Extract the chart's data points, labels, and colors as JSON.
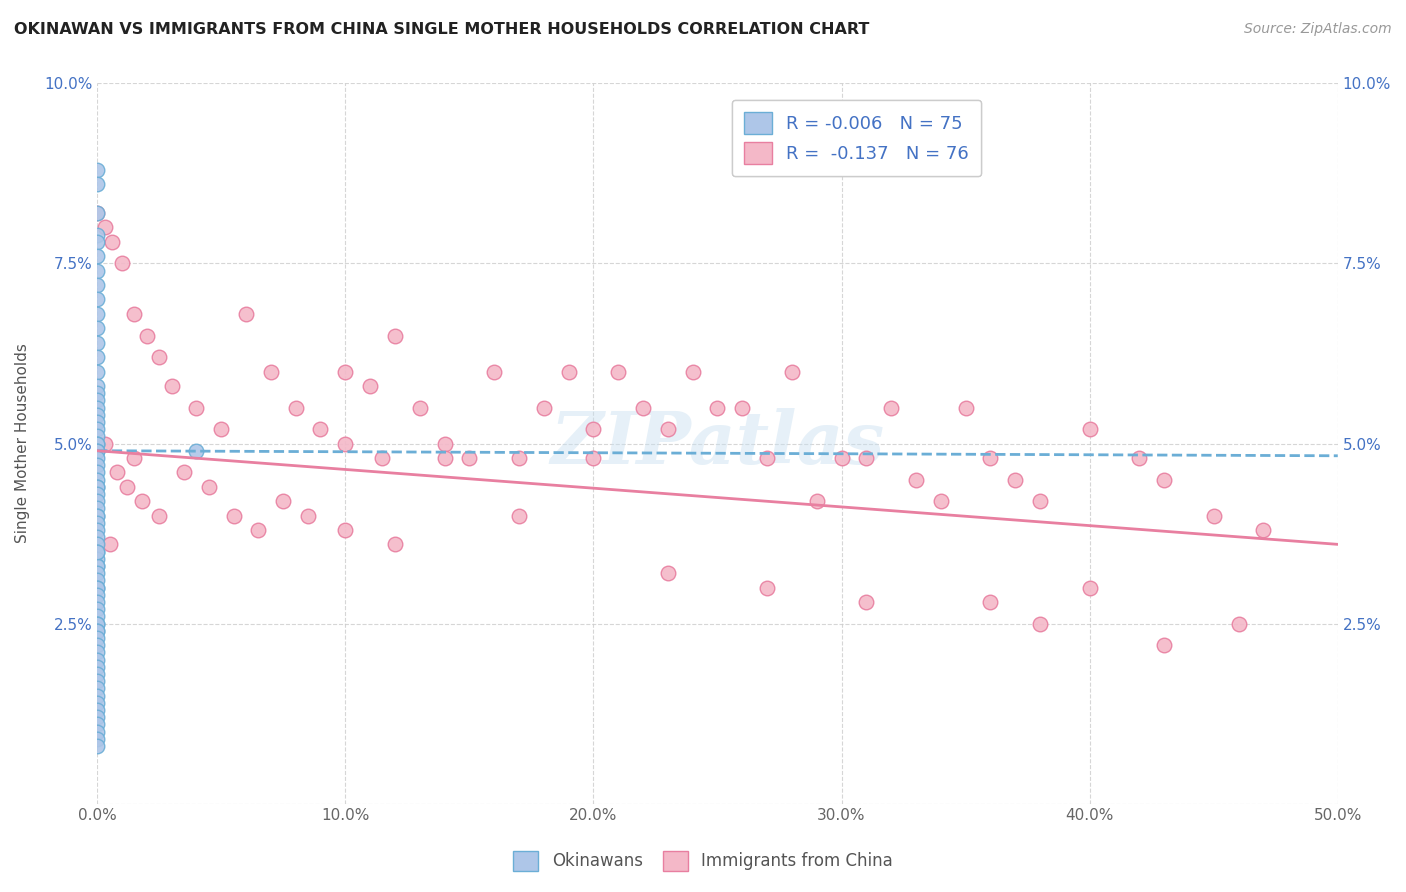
{
  "title": "OKINAWAN VS IMMIGRANTS FROM CHINA SINGLE MOTHER HOUSEHOLDS CORRELATION CHART",
  "source": "Source: ZipAtlas.com",
  "ylabel": "Single Mother Households",
  "xlim": [
    0,
    0.5
  ],
  "ylim": [
    0,
    0.1
  ],
  "okinawan_color": "#aec6e8",
  "okinawan_edge": "#6baed6",
  "china_color": "#f4b8c8",
  "china_edge": "#e87fa0",
  "okinawan_R": -0.006,
  "okinawan_N": 75,
  "china_R": -0.137,
  "china_N": 76,
  "legend_label_1": "Okinawans",
  "legend_label_2": "Immigrants from China",
  "watermark": "ZIPatlas",
  "background_color": "#ffffff",
  "okinawan_line_y_start": 0.049,
  "okinawan_line_y_end": 0.0483,
  "china_line_y_start": 0.049,
  "china_line_y_end": 0.036,
  "okinawan_x": [
    0.0,
    0.0,
    0.0,
    0.0,
    0.0,
    0.0,
    0.0,
    0.0,
    0.0,
    0.0,
    0.0,
    0.0,
    0.0,
    0.0,
    0.0,
    0.0,
    0.0,
    0.0,
    0.0,
    0.0,
    0.0,
    0.0,
    0.0,
    0.0,
    0.0,
    0.0,
    0.0,
    0.0,
    0.0,
    0.0,
    0.0,
    0.0,
    0.0,
    0.0,
    0.0,
    0.0,
    0.0,
    0.0,
    0.0,
    0.0,
    0.0,
    0.0,
    0.0,
    0.0,
    0.0,
    0.0,
    0.0,
    0.0,
    0.0,
    0.0,
    0.0,
    0.0,
    0.0,
    0.0,
    0.0,
    0.0,
    0.0,
    0.0,
    0.0,
    0.0,
    0.0,
    0.0,
    0.0,
    0.0,
    0.0,
    0.0,
    0.0,
    0.0,
    0.0,
    0.04,
    0.0,
    0.0,
    0.0,
    0.0,
    0.0
  ],
  "okinawan_y": [
    0.088,
    0.086,
    0.082,
    0.079,
    0.078,
    0.076,
    0.074,
    0.072,
    0.07,
    0.068,
    0.066,
    0.064,
    0.062,
    0.06,
    0.058,
    0.057,
    0.056,
    0.055,
    0.054,
    0.053,
    0.052,
    0.051,
    0.05,
    0.05,
    0.049,
    0.049,
    0.048,
    0.047,
    0.046,
    0.045,
    0.044,
    0.044,
    0.043,
    0.042,
    0.041,
    0.04,
    0.04,
    0.039,
    0.038,
    0.037,
    0.036,
    0.035,
    0.034,
    0.033,
    0.033,
    0.032,
    0.031,
    0.03,
    0.03,
    0.029,
    0.028,
    0.027,
    0.026,
    0.025,
    0.025,
    0.024,
    0.024,
    0.023,
    0.022,
    0.021,
    0.02,
    0.019,
    0.018,
    0.017,
    0.016,
    0.015,
    0.014,
    0.013,
    0.035,
    0.049,
    0.012,
    0.011,
    0.01,
    0.009,
    0.008
  ],
  "china_x": [
    0.0,
    0.003,
    0.006,
    0.01,
    0.015,
    0.02,
    0.025,
    0.03,
    0.04,
    0.05,
    0.06,
    0.07,
    0.08,
    0.09,
    0.1,
    0.1,
    0.11,
    0.115,
    0.12,
    0.13,
    0.14,
    0.15,
    0.16,
    0.17,
    0.18,
    0.19,
    0.2,
    0.21,
    0.22,
    0.23,
    0.24,
    0.25,
    0.26,
    0.27,
    0.28,
    0.29,
    0.3,
    0.31,
    0.32,
    0.33,
    0.34,
    0.35,
    0.36,
    0.37,
    0.38,
    0.4,
    0.42,
    0.43,
    0.45,
    0.47,
    0.003,
    0.008,
    0.012,
    0.018,
    0.025,
    0.035,
    0.045,
    0.055,
    0.065,
    0.075,
    0.085,
    0.1,
    0.12,
    0.14,
    0.17,
    0.2,
    0.23,
    0.27,
    0.31,
    0.36,
    0.38,
    0.4,
    0.43,
    0.46,
    0.005,
    0.015
  ],
  "china_y": [
    0.082,
    0.08,
    0.078,
    0.075,
    0.068,
    0.065,
    0.062,
    0.058,
    0.055,
    0.052,
    0.068,
    0.06,
    0.055,
    0.052,
    0.06,
    0.05,
    0.058,
    0.048,
    0.065,
    0.055,
    0.05,
    0.048,
    0.06,
    0.048,
    0.055,
    0.06,
    0.052,
    0.06,
    0.055,
    0.052,
    0.06,
    0.055,
    0.055,
    0.048,
    0.06,
    0.042,
    0.048,
    0.048,
    0.055,
    0.045,
    0.042,
    0.055,
    0.048,
    0.045,
    0.042,
    0.052,
    0.048,
    0.045,
    0.04,
    0.038,
    0.05,
    0.046,
    0.044,
    0.042,
    0.04,
    0.046,
    0.044,
    0.04,
    0.038,
    0.042,
    0.04,
    0.038,
    0.036,
    0.048,
    0.04,
    0.048,
    0.032,
    0.03,
    0.028,
    0.028,
    0.025,
    0.03,
    0.022,
    0.025,
    0.036,
    0.048
  ]
}
